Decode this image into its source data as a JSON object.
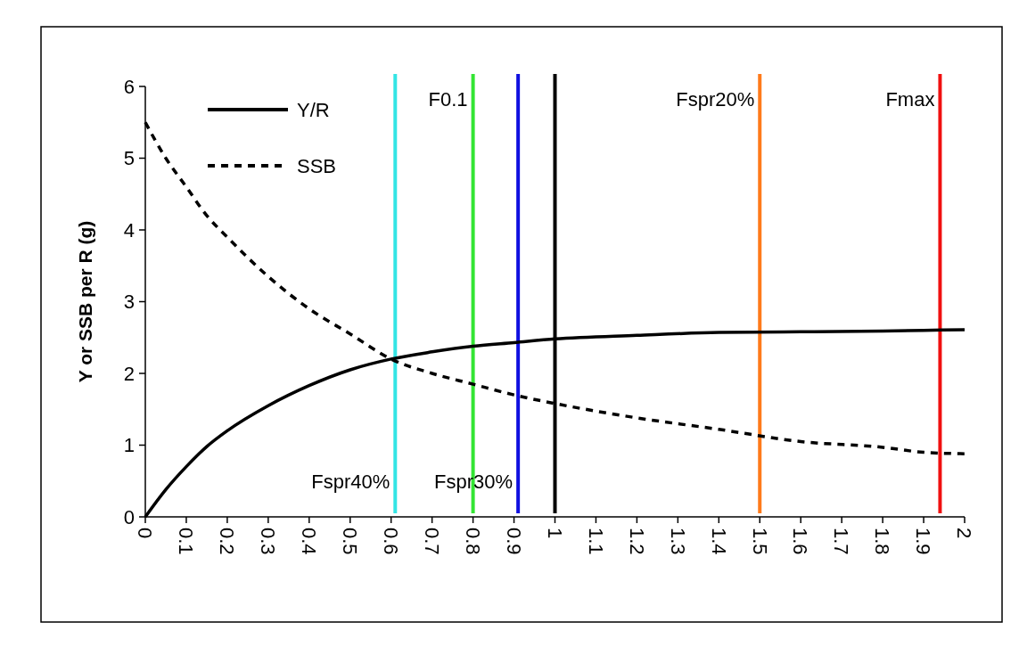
{
  "chart_data": {
    "type": "line",
    "ylabel": "Y or SSB per R (g)",
    "x": [
      0,
      0.05,
      0.1,
      0.15,
      0.2,
      0.3,
      0.4,
      0.5,
      0.6,
      0.7,
      0.8,
      0.9,
      1.0,
      1.2,
      1.4,
      1.6,
      1.8,
      1.9,
      2.0
    ],
    "series": [
      {
        "name": "Y/R",
        "color": "#000000",
        "line_style": "solid",
        "values": [
          0,
          0.38,
          0.7,
          0.98,
          1.2,
          1.55,
          1.83,
          2.05,
          2.2,
          2.3,
          2.38,
          2.43,
          2.48,
          2.53,
          2.57,
          2.58,
          2.59,
          2.6,
          2.61
        ]
      },
      {
        "name": "SSB",
        "color": "#000000",
        "line_style": "dashed",
        "values": [
          5.5,
          5.0,
          4.6,
          4.2,
          3.9,
          3.35,
          2.9,
          2.55,
          2.2,
          2.0,
          1.85,
          1.7,
          1.58,
          1.38,
          1.22,
          1.05,
          0.97,
          0.9,
          0.88
        ]
      }
    ],
    "xlim": [
      0,
      2
    ],
    "xticks": [
      0,
      0.1,
      0.2,
      0.3,
      0.4,
      0.5,
      0.6,
      0.7,
      0.8,
      0.9,
      1,
      1.1,
      1.2,
      1.3,
      1.4,
      1.5,
      1.6,
      1.7,
      1.8,
      1.9,
      2
    ],
    "ylim": [
      0,
      6
    ],
    "yticks": [
      0,
      1,
      2,
      3,
      4,
      5,
      6
    ],
    "ref_lines": [
      {
        "axis": "x",
        "value": 0.61,
        "color": "#33e5e5",
        "label": "Fspr40%"
      },
      {
        "axis": "x",
        "value": 0.8,
        "color": "#33e533",
        "label": "F0.1"
      },
      {
        "axis": "x",
        "value": 0.91,
        "color": "#1010e0",
        "label": "Fspr30%"
      },
      {
        "axis": "x",
        "value": 1.0,
        "color": "#000000"
      },
      {
        "axis": "x",
        "value": 1.5,
        "color": "#ff7a1a",
        "label": "Fspr20%"
      },
      {
        "axis": "x",
        "value": 1.94,
        "color": "#f01010",
        "label": "Fmax"
      }
    ],
    "legend": "top left",
    "grid": false
  }
}
